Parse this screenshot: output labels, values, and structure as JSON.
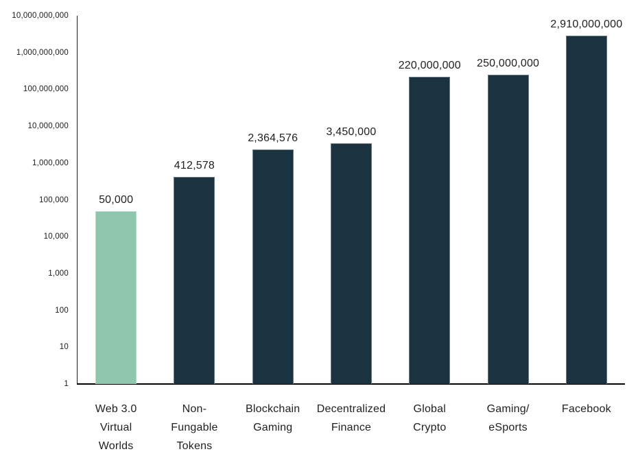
{
  "chart_data": {
    "type": "bar",
    "title": "",
    "xlabel": "",
    "ylabel": "",
    "grid": false,
    "legend": "none",
    "categories": [
      "Web 3.0 Virtual Worlds",
      "Non-Fungable Tokens",
      "Blockchain Gaming",
      "Decentralized Finance",
      "Global Crypto",
      "Gaming/eSports",
      "Facebook"
    ],
    "category_label_lines": [
      [
        "Web 3.0",
        "Virtual",
        "Worlds"
      ],
      [
        "Non-",
        "Fungable",
        "Tokens"
      ],
      [
        "Blockchain",
        "Gaming"
      ],
      [
        "Decentralized",
        "Finance"
      ],
      [
        "Global",
        "Crypto"
      ],
      [
        "Gaming/",
        "eSports"
      ],
      [
        "Facebook"
      ]
    ],
    "values": [
      50000,
      412578,
      2364576,
      3450000,
      220000000,
      250000000,
      2910000000
    ],
    "value_labels": [
      "50,000",
      "412,578",
      "2,364,576",
      "3,450,000",
      "220,000,000",
      "250,000,000",
      "2,910,000,000"
    ],
    "bar_colors": [
      "#8FC6AD",
      "#1B3241",
      "#1B3241",
      "#1B3241",
      "#1B3241",
      "#1B3241",
      "#1B3241"
    ],
    "y_axis": {
      "scale": "log",
      "min": 1,
      "max": 10000000000,
      "tick_labels": [
        "10,000,000,000",
        "1,000,000,000",
        "100,000,000",
        "10,000,000",
        "1,000,000",
        "100,000",
        "10,000",
        "1,000",
        "100",
        "10",
        "1"
      ]
    },
    "colors": {
      "highlight_bar": "#8FC6AD",
      "default_bar": "#1B3241",
      "axis": "#000000",
      "label_text": "#212121"
    }
  }
}
